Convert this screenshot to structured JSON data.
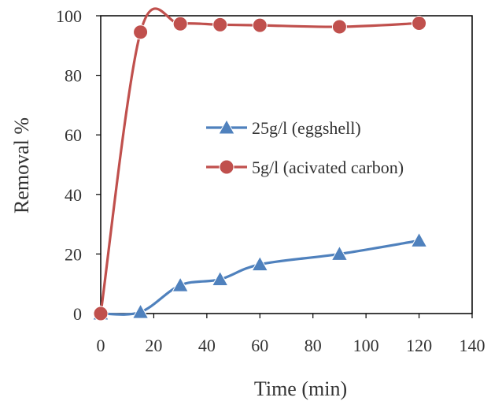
{
  "chart_data": {
    "type": "line",
    "title": "",
    "xlabel": "Time (min)",
    "ylabel": "Removal %",
    "xlim": [
      0,
      140
    ],
    "ylim": [
      0,
      100
    ],
    "xticks": [
      "0",
      "20",
      "40",
      "60",
      "80",
      "100",
      "120",
      "140"
    ],
    "yticks": [
      "0",
      "20",
      "40",
      "60",
      "80",
      "100"
    ],
    "grid": false,
    "legend_position": "center-right",
    "series": [
      {
        "name": "25g/l (eggshell)",
        "color": "#4F81BD",
        "marker": "triangle",
        "x": [
          0,
          15,
          30,
          45,
          60,
          90,
          120
        ],
        "y": [
          0,
          0.5,
          9.5,
          11.5,
          16.5,
          20,
          24.5
        ]
      },
      {
        "name": "5g/l (acivated carbon)",
        "color": "#C0504D",
        "marker": "circle",
        "x": [
          0,
          15,
          30,
          45,
          60,
          90,
          120
        ],
        "y": [
          0,
          94.5,
          97.3,
          97,
          96.8,
          96.3,
          97.5
        ]
      }
    ]
  }
}
